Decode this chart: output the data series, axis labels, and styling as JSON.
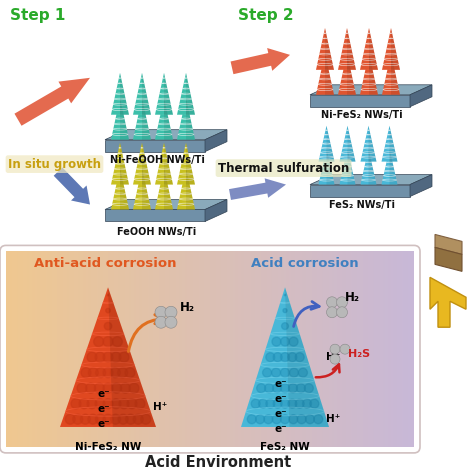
{
  "bg_color": "#ffffff",
  "title": "Acid Environment",
  "step1_label": "Step 1",
  "step2_label": "Step 2",
  "in_situ_label": "In situ growth",
  "thermal_label": "Thermal sulfuration",
  "label_ni_feooh": "Ni-FeOOH NWs/Ti",
  "label_ni_fes2_top": "Ni-FeS₂ NWs/Ti",
  "label_feooh": "FeOOH NWs/Ti",
  "label_fes2_top": "FeS₂ NWs/Ti",
  "label_ni_fes2_nw": "Ni-FeS₂ NW",
  "label_fes2_nw": "FeS₂ NW",
  "anti_acid_title": "Anti-acid corrosion",
  "acid_title": "Acid corrosion",
  "cone_teal": "#3cbfaa",
  "cone_orange_red": "#e05530",
  "cone_yellow": "#c8c020",
  "cone_blue": "#48b8d8",
  "plat_top": "#8aaabb",
  "plat_front": "#7090a8",
  "plat_right": "#506880",
  "arrow_red": "#e05030",
  "arrow_blue_nav": "#4060a8",
  "arrow_blue_light": "#8090c0",
  "arrow_orange": "#e07820",
  "panel_left_color": "#f0c890",
  "panel_right_color": "#c8b8d8",
  "cone_l_color": "#e04820",
  "cone_r_color": "#48b8d8",
  "h2s_color": "#cc2020",
  "yellow_arrow_color": "#e8b820",
  "cube_color": "#a08050"
}
